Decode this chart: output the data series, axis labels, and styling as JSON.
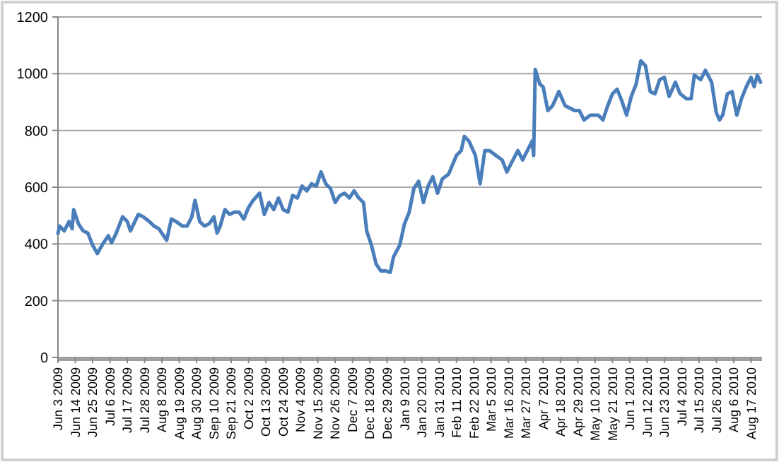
{
  "chart_data": {
    "type": "line",
    "color": "#4a7ebb",
    "grid": "y",
    "marker": "none",
    "line_style": "solid",
    "ylim": [
      0,
      1200
    ],
    "yticks": [
      0,
      200,
      400,
      600,
      800,
      1000,
      1200
    ],
    "xlim": [
      "2009-06-03",
      "2010-08-24"
    ],
    "xticks": [
      {
        "value": "2009-06-03",
        "label": "Jun 3 2009"
      },
      {
        "value": "2009-06-14",
        "label": "Jun 14 2009"
      },
      {
        "value": "2009-06-25",
        "label": "Jun 25 2009"
      },
      {
        "value": "2009-07-06",
        "label": "Jul 6 2009"
      },
      {
        "value": "2009-07-17",
        "label": "Jul 17 2009"
      },
      {
        "value": "2009-07-28",
        "label": "Jul 28 2009"
      },
      {
        "value": "2009-08-08",
        "label": "Aug 8 2009"
      },
      {
        "value": "2009-08-19",
        "label": "Aug 19 2009"
      },
      {
        "value": "2009-08-30",
        "label": "Aug 30 2009"
      },
      {
        "value": "2009-09-10",
        "label": "Sep 10 2009"
      },
      {
        "value": "2009-09-21",
        "label": "Sep 21 2009"
      },
      {
        "value": "2009-10-02",
        "label": "Oct 2 2009"
      },
      {
        "value": "2009-10-13",
        "label": "Oct 13 2009"
      },
      {
        "value": "2009-10-24",
        "label": "Oct 24 2009"
      },
      {
        "value": "2009-11-04",
        "label": "Nov 4 2009"
      },
      {
        "value": "2009-11-15",
        "label": "Nov 15 2009"
      },
      {
        "value": "2009-11-26",
        "label": "Nov 26 2009"
      },
      {
        "value": "2009-12-07",
        "label": "Dec 7 2009"
      },
      {
        "value": "2009-12-18",
        "label": "Dec 18 2009"
      },
      {
        "value": "2009-12-29",
        "label": "Dec 29 2009"
      },
      {
        "value": "2010-01-09",
        "label": "Jan 9 2010"
      },
      {
        "value": "2010-01-20",
        "label": "Jan 20 2010"
      },
      {
        "value": "2010-01-31",
        "label": "Jan 31 2010"
      },
      {
        "value": "2010-02-11",
        "label": "Feb 11 2010"
      },
      {
        "value": "2010-02-22",
        "label": "Feb 22 2010"
      },
      {
        "value": "2010-03-05",
        "label": "Mar 5 2010"
      },
      {
        "value": "2010-03-16",
        "label": "Mar 16 2010"
      },
      {
        "value": "2010-03-27",
        "label": "Mar 27 2010"
      },
      {
        "value": "2010-04-07",
        "label": "Apr 7 2010"
      },
      {
        "value": "2010-04-18",
        "label": "Apr 18 2010"
      },
      {
        "value": "2010-04-29",
        "label": "Apr 29 2010"
      },
      {
        "value": "2010-05-10",
        "label": "May 10 2010"
      },
      {
        "value": "2010-05-21",
        "label": "May 21 2010"
      },
      {
        "value": "2010-06-01",
        "label": "Jun 1 2010"
      },
      {
        "value": "2010-06-12",
        "label": "Jun 12 2010"
      },
      {
        "value": "2010-06-23",
        "label": "Jun 23 2010"
      },
      {
        "value": "2010-07-04",
        "label": "Jul 4 2010"
      },
      {
        "value": "2010-07-15",
        "label": "Jul 15 2010"
      },
      {
        "value": "2010-07-26",
        "label": "Jul 26 2010"
      },
      {
        "value": "2010-08-06",
        "label": "Aug 6 2010"
      },
      {
        "value": "2010-08-17",
        "label": "Aug 17 2010"
      }
    ],
    "x": [
      "2009-06-03",
      "2009-06-04",
      "2009-06-07",
      "2009-06-10",
      "2009-06-12",
      "2009-06-13",
      "2009-06-16",
      "2009-06-19",
      "2009-06-22",
      "2009-06-25",
      "2009-06-28",
      "2009-07-01",
      "2009-07-05",
      "2009-07-07",
      "2009-07-10",
      "2009-07-14",
      "2009-07-17",
      "2009-07-19",
      "2009-07-24",
      "2009-07-27",
      "2009-07-31",
      "2009-08-03",
      "2009-08-06",
      "2009-08-11",
      "2009-08-14",
      "2009-08-17",
      "2009-08-21",
      "2009-08-24",
      "2009-08-27",
      "2009-08-29",
      "2009-09-01",
      "2009-09-04",
      "2009-09-07",
      "2009-09-10",
      "2009-09-12",
      "2009-09-14",
      "2009-09-17",
      "2009-09-20",
      "2009-09-23",
      "2009-09-26",
      "2009-09-29",
      "2009-10-02",
      "2009-10-05",
      "2009-10-09",
      "2009-10-12",
      "2009-10-15",
      "2009-10-18",
      "2009-10-21",
      "2009-10-24",
      "2009-10-27",
      "2009-10-30",
      "2009-11-02",
      "2009-11-05",
      "2009-11-08",
      "2009-11-11",
      "2009-11-14",
      "2009-11-17",
      "2009-11-20",
      "2009-11-23",
      "2009-11-26",
      "2009-11-29",
      "2009-12-02",
      "2009-12-05",
      "2009-12-08",
      "2009-12-11",
      "2009-12-14",
      "2009-12-16",
      "2009-12-19",
      "2009-12-22",
      "2009-12-25",
      "2009-12-28",
      "2009-12-31",
      "2010-01-02",
      "2010-01-06",
      "2010-01-09",
      "2010-01-12",
      "2010-01-15",
      "2010-01-18",
      "2010-01-21",
      "2010-01-24",
      "2010-01-27",
      "2010-01-30",
      "2010-02-02",
      "2010-02-06",
      "2010-02-11",
      "2010-02-14",
      "2010-02-16",
      "2010-02-19",
      "2010-02-23",
      "2010-02-26",
      "2010-03-01",
      "2010-03-04",
      "2010-03-08",
      "2010-03-12",
      "2010-03-15",
      "2010-03-18",
      "2010-03-22",
      "2010-03-25",
      "2010-03-28",
      "2010-03-31",
      "2010-04-01",
      "2010-04-02",
      "2010-04-05",
      "2010-04-07",
      "2010-04-10",
      "2010-04-13",
      "2010-04-17",
      "2010-04-21",
      "2010-04-24",
      "2010-04-27",
      "2010-04-30",
      "2010-05-03",
      "2010-05-07",
      "2010-05-12",
      "2010-05-15",
      "2010-05-18",
      "2010-05-21",
      "2010-05-24",
      "2010-05-27",
      "2010-05-30",
      "2010-06-02",
      "2010-06-05",
      "2010-06-08",
      "2010-06-11",
      "2010-06-14",
      "2010-06-17",
      "2010-06-20",
      "2010-06-23",
      "2010-06-26",
      "2010-06-30",
      "2010-07-03",
      "2010-07-07",
      "2010-07-10",
      "2010-07-12",
      "2010-07-16",
      "2010-07-19",
      "2010-07-23",
      "2010-07-26",
      "2010-07-28",
      "2010-07-30",
      "2010-08-02",
      "2010-08-05",
      "2010-08-08",
      "2010-08-11",
      "2010-08-14",
      "2010-08-17",
      "2010-08-19",
      "2010-08-21",
      "2010-08-23"
    ],
    "values": [
      437,
      463,
      446,
      479,
      454,
      521,
      471,
      446,
      438,
      396,
      366,
      396,
      429,
      404,
      438,
      496,
      479,
      446,
      504,
      496,
      479,
      463,
      454,
      413,
      488,
      479,
      463,
      463,
      496,
      554,
      479,
      463,
      471,
      496,
      438,
      463,
      521,
      504,
      512,
      512,
      488,
      529,
      554,
      579,
      504,
      546,
      521,
      562,
      521,
      512,
      571,
      562,
      604,
      587,
      612,
      604,
      654,
      612,
      596,
      546,
      571,
      579,
      562,
      587,
      562,
      546,
      446,
      396,
      329,
      305,
      305,
      300,
      354,
      396,
      471,
      512,
      596,
      621,
      546,
      604,
      637,
      579,
      629,
      646,
      712,
      729,
      779,
      762,
      712,
      612,
      729,
      729,
      712,
      696,
      654,
      687,
      729,
      696,
      729,
      762,
      712,
      1015,
      962,
      954,
      870,
      887,
      937,
      887,
      879,
      870,
      870,
      837,
      854,
      854,
      837,
      887,
      929,
      945,
      904,
      854,
      920,
      962,
      1045,
      1028,
      937,
      929,
      979,
      987,
      920,
      970,
      929,
      912,
      912,
      995,
      979,
      1012,
      970,
      862,
      837,
      854,
      929,
      937,
      854,
      912,
      954,
      987,
      954,
      995,
      970
    ]
  }
}
